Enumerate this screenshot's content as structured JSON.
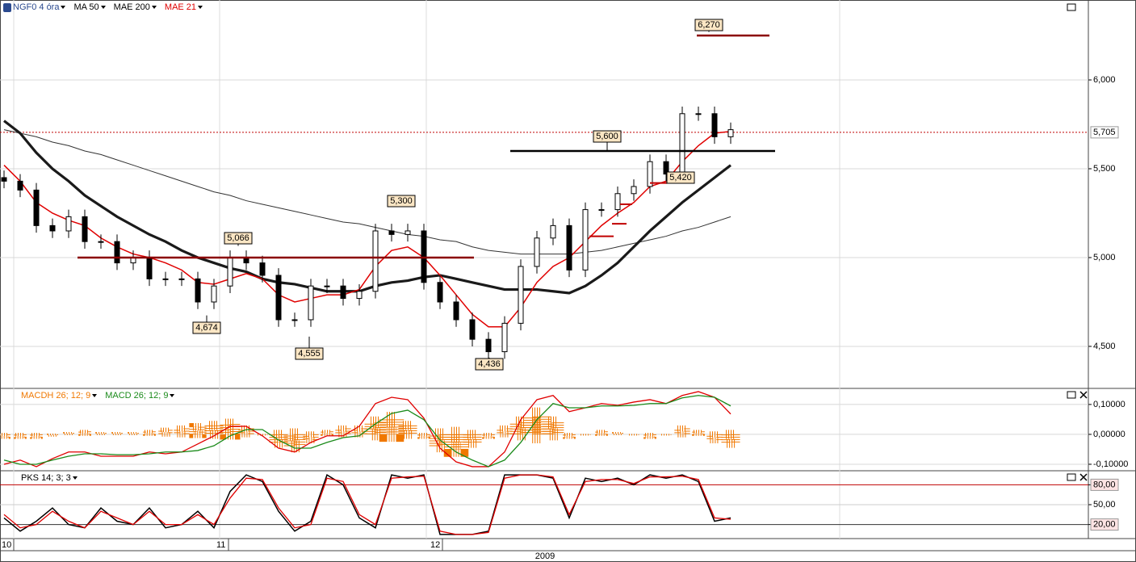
{
  "chart_data": [
    {
      "type": "candlestick",
      "series": [
        {
          "name": "NGF0 4 óra",
          "color": "#000000",
          "open": [
            5.45,
            5.43,
            5.38,
            5.18,
            5.15,
            5.23,
            5.09,
            5.09,
            4.97,
            5.0,
            4.88,
            4.88,
            4.88,
            4.75,
            4.84,
            5.0,
            4.97,
            4.9,
            4.65,
            4.65,
            4.84,
            4.84,
            4.77,
            4.81,
            5.15,
            5.13,
            5.15,
            4.86,
            4.75,
            4.65,
            4.54,
            4.47,
            4.63,
            4.95,
            5.11,
            5.18,
            4.93,
            5.27,
            5.27,
            5.36,
            5.4,
            5.54,
            5.47,
            5.81,
            5.81,
            5.68
          ],
          "high": [
            5.49,
            5.47,
            5.42,
            5.22,
            5.27,
            5.27,
            5.13,
            5.13,
            5.04,
            5.04,
            4.92,
            4.92,
            4.92,
            4.88,
            5.04,
            5.04,
            5.01,
            4.94,
            4.69,
            4.88,
            4.88,
            4.88,
            4.85,
            5.19,
            5.19,
            5.19,
            5.19,
            4.9,
            4.79,
            4.69,
            4.58,
            4.67,
            4.99,
            5.15,
            5.22,
            5.22,
            5.31,
            5.31,
            5.4,
            5.44,
            5.58,
            5.58,
            5.85,
            5.85,
            5.85,
            5.76
          ],
          "low": [
            5.39,
            5.34,
            5.14,
            5.11,
            5.11,
            5.05,
            5.05,
            4.93,
            4.93,
            4.84,
            4.84,
            4.84,
            4.71,
            4.71,
            4.8,
            4.93,
            4.86,
            4.61,
            4.61,
            4.61,
            4.8,
            4.73,
            4.73,
            4.77,
            5.09,
            5.09,
            4.82,
            4.71,
            4.61,
            4.5,
            4.43,
            4.43,
            4.59,
            4.91,
            5.07,
            4.89,
            4.89,
            5.23,
            5.23,
            5.32,
            5.36,
            5.43,
            5.43,
            5.77,
            5.64,
            5.64
          ],
          "close": [
            5.43,
            5.38,
            5.18,
            5.15,
            5.23,
            5.09,
            5.09,
            4.97,
            5.0,
            4.88,
            4.88,
            4.88,
            4.75,
            4.84,
            5.0,
            4.97,
            4.9,
            4.65,
            4.65,
            4.84,
            4.84,
            4.77,
            4.81,
            5.15,
            5.13,
            5.15,
            4.86,
            4.75,
            4.65,
            4.54,
            4.47,
            4.63,
            4.95,
            5.11,
            5.18,
            4.93,
            5.27,
            5.27,
            5.36,
            5.4,
            5.54,
            5.47,
            5.81,
            5.81,
            5.68,
            5.72
          ]
        },
        {
          "name": "MA 50",
          "color": "#1a1a1a",
          "values": [
            5.77,
            5.7,
            5.59,
            5.5,
            5.43,
            5.35,
            5.29,
            5.23,
            5.18,
            5.13,
            5.09,
            5.04,
            5.0,
            4.97,
            4.94,
            4.92,
            4.88,
            4.86,
            4.85,
            4.83,
            4.81,
            4.81,
            4.81,
            4.84,
            4.86,
            4.87,
            4.89,
            4.9,
            4.88,
            4.86,
            4.84,
            4.82,
            4.82,
            4.82,
            4.81,
            4.8,
            4.84,
            4.9,
            4.97,
            5.06,
            5.15,
            5.23,
            5.31,
            5.38,
            5.45,
            5.52
          ]
        },
        {
          "name": "MAE 200",
          "color": "#333333",
          "values": [
            5.72,
            5.7,
            5.68,
            5.65,
            5.63,
            5.6,
            5.58,
            5.55,
            5.52,
            5.49,
            5.46,
            5.43,
            5.4,
            5.37,
            5.35,
            5.32,
            5.3,
            5.28,
            5.26,
            5.24,
            5.22,
            5.2,
            5.19,
            5.17,
            5.15,
            5.13,
            5.12,
            5.1,
            5.09,
            5.06,
            5.04,
            5.03,
            5.02,
            5.02,
            5.02,
            5.02,
            5.03,
            5.04,
            5.06,
            5.08,
            5.1,
            5.12,
            5.15,
            5.17,
            5.2,
            5.23
          ]
        },
        {
          "name": "MAE 21",
          "color": "#e00000",
          "values": [
            5.52,
            5.43,
            5.31,
            5.25,
            5.21,
            5.18,
            5.11,
            5.06,
            5.02,
            5.0,
            4.97,
            4.93,
            4.86,
            4.85,
            4.88,
            4.91,
            4.88,
            4.79,
            4.75,
            4.77,
            4.79,
            4.79,
            4.82,
            4.95,
            5.04,
            5.06,
            5.0,
            4.9,
            4.79,
            4.68,
            4.61,
            4.61,
            4.72,
            4.86,
            4.95,
            5.0,
            5.09,
            5.18,
            5.25,
            5.31,
            5.4,
            5.43,
            5.54,
            5.63,
            5.7,
            5.71
          ]
        }
      ],
      "ylim": [
        4.268,
        6.45
      ],
      "yticks": [
        {
          "value": 6,
          "label": "6,000"
        },
        {
          "value": 5.5,
          "label": "5,500"
        },
        {
          "value": 5,
          "label": "5,000"
        },
        {
          "value": 4.5,
          "label": "4,500"
        }
      ],
      "last_price": {
        "value": 5.705,
        "label": "5,705",
        "color": "#c00000"
      },
      "annotations": [
        {
          "value": 6.27,
          "label": "6,270"
        },
        {
          "value": 5.6,
          "label": "5,600"
        },
        {
          "value": 5.42,
          "label": "5,420"
        },
        {
          "value": 5.3,
          "label": "5,300"
        },
        {
          "value": 5.066,
          "label": "5,066"
        },
        {
          "value": 4.674,
          "label": "4,674"
        },
        {
          "value": 4.555,
          "label": "4,555"
        },
        {
          "value": 4.436,
          "label": "4,436"
        }
      ],
      "levels": [
        {
          "value": 6.25,
          "color": "#8b0000"
        },
        {
          "value": 5.6,
          "color": "#000000"
        },
        {
          "value": 5.0,
          "color": "#8b0000"
        },
        {
          "value": 5.12,
          "color": "#c00000"
        },
        {
          "value": 5.19,
          "color": "#c00000"
        },
        {
          "value": 5.3,
          "color": "#c00000"
        },
        {
          "value": 5.42,
          "color": "#c00000"
        }
      ]
    },
    {
      "type": "macd",
      "series": [
        {
          "name": "MACDH 26; 12; 9",
          "color": "#f07800",
          "values": [
            -0.01,
            -0.01,
            -0.01,
            -0.005,
            0.005,
            0.01,
            0.005,
            0.005,
            0.005,
            0.01,
            0.015,
            0.02,
            0.025,
            0.03,
            0.035,
            0.02,
            0.0,
            -0.03,
            -0.04,
            -0.02,
            0.01,
            0.02,
            0.02,
            0.04,
            0.05,
            0.03,
            -0.01,
            -0.04,
            -0.05,
            -0.03,
            -0.01,
            0.02,
            0.04,
            0.06,
            0.04,
            -0.01,
            0.0,
            0.01,
            0.005,
            0.0,
            -0.01,
            0.0,
            0.02,
            0.01,
            -0.02,
            -0.03
          ]
        },
        {
          "name": "MACD 26; 12; 9",
          "color": "#1a8a1a",
          "values": [
            -0.086,
            -0.1,
            -0.1,
            -0.086,
            -0.073,
            -0.065,
            -0.065,
            -0.068,
            -0.068,
            -0.065,
            -0.059,
            -0.059,
            -0.054,
            -0.038,
            -0.005,
            0.016,
            0.016,
            -0.019,
            -0.046,
            -0.046,
            -0.027,
            -0.011,
            -0.005,
            0.035,
            0.07,
            0.081,
            0.049,
            -0.019,
            -0.059,
            -0.086,
            -0.108,
            -0.086,
            -0.027,
            0.049,
            0.103,
            0.089,
            0.089,
            0.095,
            0.095,
            0.097,
            0.103,
            0.103,
            0.122,
            0.13,
            0.124,
            0.095
          ]
        },
        {
          "color": "#e00000",
          "values": [
            -0.1,
            -0.086,
            -0.108,
            -0.081,
            -0.059,
            -0.059,
            -0.073,
            -0.073,
            -0.073,
            -0.059,
            -0.065,
            -0.059,
            -0.032,
            -0.005,
            0.027,
            0.027,
            -0.005,
            -0.046,
            -0.059,
            -0.027,
            -0.005,
            -0.005,
            0.027,
            0.103,
            0.124,
            0.116,
            0.054,
            -0.046,
            -0.092,
            -0.108,
            -0.108,
            -0.059,
            0.049,
            0.116,
            0.13,
            0.076,
            0.089,
            0.103,
            0.097,
            0.108,
            0.116,
            0.103,
            0.13,
            0.143,
            0.124,
            0.068
          ]
        }
      ],
      "ylim": [
        -0.119,
        0.151
      ],
      "yticks": [
        {
          "value": 0.1,
          "label": "0,10000"
        },
        {
          "value": 0,
          "label": "0,00000"
        },
        {
          "value": -0.1,
          "label": "-0,10000"
        }
      ]
    },
    {
      "type": "stochastic",
      "series": [
        {
          "name": "PKS 14; 3; 3",
          "color": "#000000",
          "values": [
            30,
            10,
            25,
            45,
            20,
            15,
            45,
            25,
            20,
            45,
            15,
            20,
            40,
            15,
            70,
            95,
            85,
            40,
            10,
            25,
            95,
            80,
            30,
            15,
            95,
            90,
            95,
            5,
            5,
            5,
            10,
            95,
            95,
            95,
            90,
            30,
            90,
            85,
            90,
            80,
            95,
            90,
            95,
            85,
            25,
            30
          ]
        },
        {
          "color": "#e00000",
          "values": [
            35,
            15,
            20,
            40,
            25,
            15,
            40,
            30,
            20,
            40,
            20,
            20,
            35,
            20,
            60,
            90,
            88,
            45,
            15,
            20,
            90,
            85,
            35,
            20,
            90,
            92,
            93,
            10,
            5,
            5,
            8,
            90,
            95,
            95,
            92,
            35,
            85,
            88,
            88,
            82,
            92,
            92,
            93,
            88,
            30,
            28
          ]
        }
      ],
      "ylim": [
        0,
        100
      ],
      "yticks": [
        {
          "value": 80,
          "label": "80,00"
        },
        {
          "value": 50,
          "label": "50,00"
        },
        {
          "value": 20,
          "label": "20,00"
        }
      ],
      "ytick_colors": [
        "#c00000",
        "#cccccc",
        "#333333"
      ]
    }
  ],
  "time_axis": {
    "labels": [
      "10",
      "11",
      "12"
    ],
    "year": "2009"
  }
}
